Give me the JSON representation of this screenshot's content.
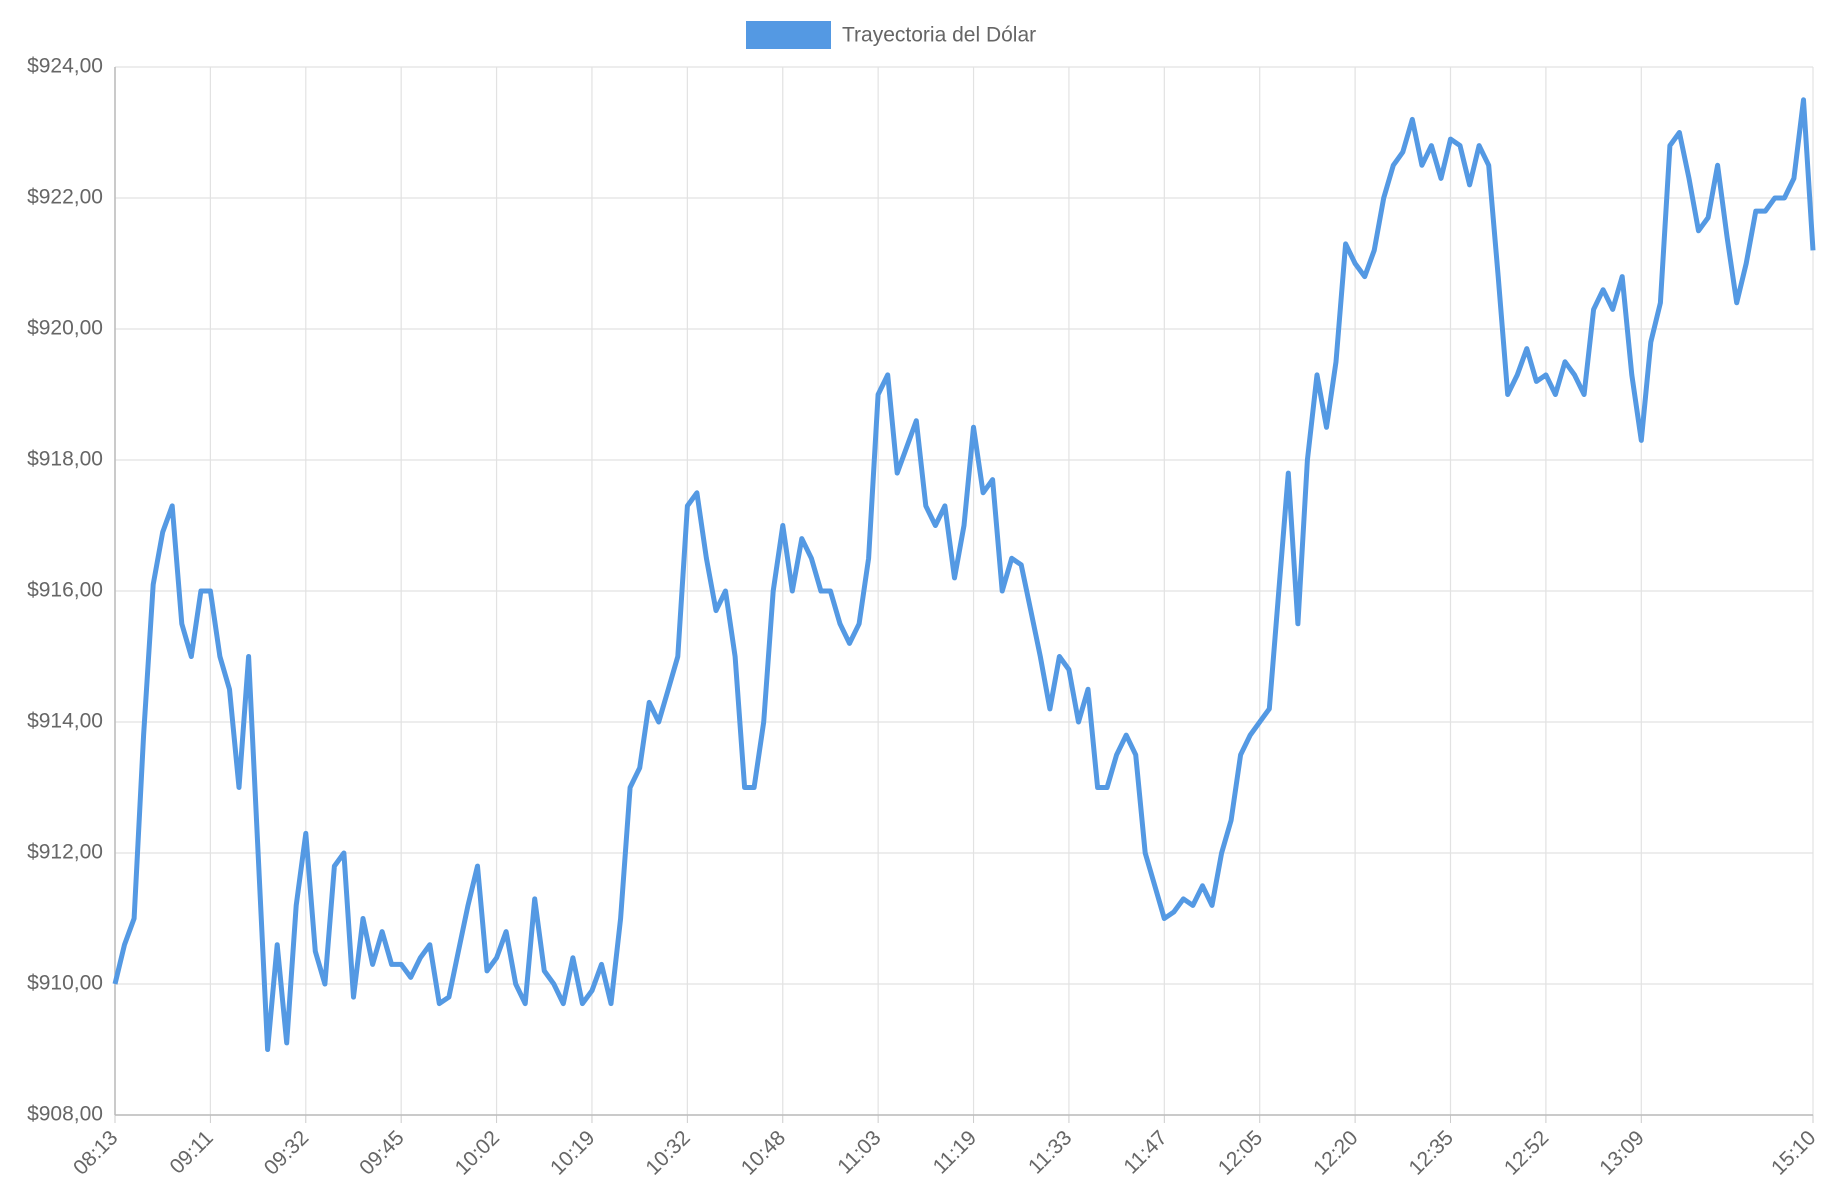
{
  "chart_data": {
    "type": "line",
    "series": [
      {
        "name": "Trayectoria del Dólar",
        "color": "#5499e3",
        "values": [
          910.0,
          910.6,
          911.0,
          913.8,
          916.1,
          916.9,
          917.3,
          915.5,
          915.0,
          916.0,
          916.0,
          915.0,
          914.5,
          913.0,
          915.0,
          912.0,
          909.0,
          910.6,
          909.1,
          911.2,
          912.3,
          910.5,
          910.0,
          911.8,
          912.0,
          909.8,
          911.0,
          910.3,
          910.8,
          910.3,
          910.3,
          910.1,
          910.4,
          910.6,
          909.7,
          909.8,
          910.5,
          911.2,
          911.8,
          910.2,
          910.4,
          910.8,
          910.0,
          909.7,
          911.3,
          910.2,
          910.0,
          909.7,
          910.4,
          909.7,
          909.9,
          910.3,
          909.7,
          911.0,
          913.0,
          913.3,
          914.3,
          914.0,
          914.5,
          915.0,
          917.3,
          917.5,
          916.5,
          915.7,
          916.0,
          915.0,
          913.0,
          913.0,
          914.0,
          916.0,
          917.0,
          916.0,
          916.8,
          916.5,
          916.0,
          916.0,
          915.5,
          915.2,
          915.5,
          916.5,
          919.0,
          919.3,
          917.8,
          918.2,
          918.6,
          917.3,
          917.0,
          917.3,
          916.2,
          917.0,
          918.5,
          917.5,
          917.7,
          916.0,
          916.5,
          916.4,
          915.7,
          915.0,
          914.2,
          915.0,
          914.8,
          914.0,
          914.5,
          913.0,
          913.0,
          913.5,
          913.8,
          913.5,
          912.0,
          911.5,
          911.0,
          911.1,
          911.3,
          911.2,
          911.5,
          911.2,
          912.0,
          912.5,
          913.5,
          913.8,
          914.0,
          914.2,
          916.0,
          917.8,
          915.5,
          918.0,
          919.3,
          918.5,
          919.5,
          921.3,
          921.0,
          920.8,
          921.2,
          922.0,
          922.5,
          922.7,
          923.2,
          922.5,
          922.8,
          922.3,
          922.9,
          922.8,
          922.2,
          922.8,
          922.5,
          920.8,
          919.0,
          919.3,
          919.7,
          919.2,
          919.3,
          919.0,
          919.5,
          919.3,
          919.0,
          920.3,
          920.6,
          920.3,
          920.8,
          919.3,
          918.3,
          919.8,
          920.4,
          922.8,
          923.0,
          922.3,
          921.5,
          921.7,
          922.5,
          921.4,
          920.4,
          921.0,
          921.8,
          921.8,
          922.0,
          922.0,
          922.3,
          923.5,
          921.2
        ]
      }
    ],
    "categories": [
      "08:13",
      null,
      null,
      null,
      null,
      null,
      null,
      null,
      null,
      null,
      "09:11",
      null,
      null,
      null,
      null,
      null,
      null,
      null,
      null,
      null,
      "09:32",
      null,
      null,
      null,
      null,
      null,
      null,
      null,
      null,
      null,
      "09:45",
      null,
      null,
      null,
      null,
      null,
      null,
      null,
      null,
      null,
      "10:02",
      null,
      null,
      null,
      null,
      null,
      null,
      null,
      null,
      null,
      "10:19",
      null,
      null,
      null,
      null,
      null,
      null,
      null,
      null,
      null,
      "10:32",
      null,
      null,
      null,
      null,
      null,
      null,
      null,
      null,
      null,
      "10:48",
      null,
      null,
      null,
      null,
      null,
      null,
      null,
      null,
      null,
      "11:03",
      null,
      null,
      null,
      null,
      null,
      null,
      null,
      null,
      null,
      "11:19",
      null,
      null,
      null,
      null,
      null,
      null,
      null,
      null,
      null,
      "11:33",
      null,
      null,
      null,
      null,
      null,
      null,
      null,
      null,
      null,
      "11:47",
      null,
      null,
      null,
      null,
      null,
      null,
      null,
      null,
      null,
      "12:05",
      null,
      null,
      null,
      null,
      null,
      null,
      null,
      null,
      null,
      "12:20",
      null,
      null,
      null,
      null,
      null,
      null,
      null,
      null,
      null,
      "12:35",
      null,
      null,
      null,
      null,
      null,
      null,
      null,
      null,
      null,
      "12:52",
      null,
      null,
      null,
      null,
      null,
      null,
      null,
      null,
      null,
      "13:09",
      null,
      null,
      null,
      null,
      null,
      null,
      null,
      null,
      null,
      null,
      null,
      null,
      null,
      null,
      null,
      null,
      null,
      "15:10"
    ],
    "ylim": [
      908,
      924
    ],
    "yticks": [
      {
        "value": 908,
        "label": "$908,00"
      },
      {
        "value": 910,
        "label": "$910,00"
      },
      {
        "value": 912,
        "label": "$912,00"
      },
      {
        "value": 914,
        "label": "$914,00"
      },
      {
        "value": 916,
        "label": "$916,00"
      },
      {
        "value": 918,
        "label": "$918,00"
      },
      {
        "value": 920,
        "label": "$920,00"
      },
      {
        "value": 922,
        "label": "$922,00"
      },
      {
        "value": 924,
        "label": "$924,00"
      }
    ],
    "grid": true,
    "legend": "top"
  }
}
